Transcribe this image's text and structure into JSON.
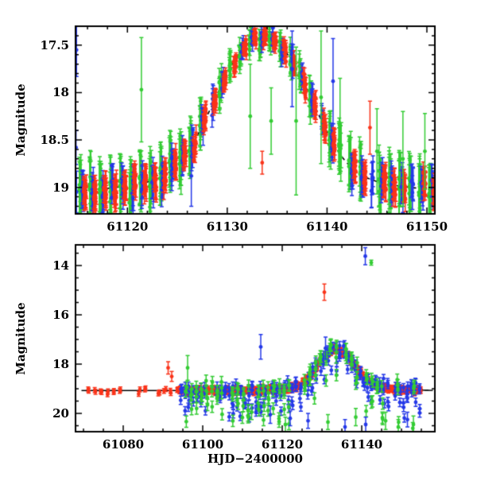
{
  "figure": {
    "ylabel": "Magnitude",
    "xlabel": "HJD−2400000",
    "background": "#ffffff",
    "frame_color": "#000000",
    "colors": {
      "red": "#fa3319",
      "green": "#33cc33",
      "blue": "#2438e8"
    }
  },
  "chart_data": [
    {
      "id": "top",
      "type": "scatter",
      "description": "Zoom on outburst peak: nightly clustered photometry from three sources (red/green/blue) with error bars and dashed model light curve peaking near HJD 61133.6 at mag 17.45 over a 19.07 baseline",
      "ylabel": "Magnitude",
      "xlabel": "",
      "xlim": [
        61114.8,
        61150.8
      ],
      "ylim": [
        17.3,
        19.28
      ],
      "y_axis_inverted_magnitude": true,
      "x_major_ticks": [
        61120,
        61130,
        61140,
        61150
      ],
      "x_minor_step": 2,
      "y_major_ticks": [
        17.5,
        18,
        18.5,
        19
      ],
      "y_minor_step": 0.1,
      "grid": false,
      "legend": false,
      "model": {
        "shape": "double-gaussian-flux-bump",
        "base_mag": 19.07,
        "t0": 61133.6,
        "a1": 3.37,
        "s1": 3.5,
        "a2": 0.25,
        "s2": 9.0,
        "style": "dashed",
        "color": "#000000",
        "range": [
          61114.8,
          61150.8
        ]
      },
      "series": [
        {
          "name": "observer-green",
          "color": "green",
          "seed": 101,
          "night_start": 61115.0,
          "night_end": 61150.6,
          "night_step": 1.0,
          "night_offset": 0.3,
          "n_per_night": 8,
          "t_spread": 0.12,
          "mag_scatter": 0.055,
          "night_wobble": 0.035,
          "err_base": 0.1,
          "err_slope": 0.13,
          "skip_prob": 0.1,
          "faint_prob": 0,
          "faint_max": 0
        },
        {
          "name": "observer-blue",
          "color": "blue",
          "seed": 202,
          "night_start": 61115.0,
          "night_end": 61150.6,
          "night_step": 1.0,
          "night_offset": 0.52,
          "n_per_night": 6,
          "t_spread": 0.1,
          "mag_scatter": 0.05,
          "night_wobble": 0.03,
          "err_base": 0.07,
          "err_slope": 0.07,
          "skip_prob": 0.12,
          "faint_prob": 0,
          "faint_max": 0
        },
        {
          "name": "observer-red",
          "color": "red",
          "seed": 303,
          "night_start": 61115.0,
          "night_end": 61150.6,
          "night_step": 1.0,
          "night_offset": 0.76,
          "n_per_night": 13,
          "t_spread": 0.14,
          "mag_scatter": 0.045,
          "night_wobble": 0.028,
          "err_base": 0.05,
          "err_slope": 0.05,
          "skip_prob": 0.06,
          "faint_prob": 0,
          "faint_max": 0
        }
      ],
      "extras": [
        {
          "series": "blue",
          "x": 61114.9,
          "mag": 17.55,
          "err": 0.28
        },
        {
          "series": "blue",
          "x": 61114.85,
          "mag": 18.58,
          "err": 0.18
        },
        {
          "series": "blue",
          "x": 61114.9,
          "mag": 19.05,
          "err": 0.22
        },
        {
          "series": "green",
          "x": 61121.4,
          "mag": 17.97,
          "err": 0.55
        },
        {
          "series": "blue",
          "x": 61126.4,
          "mag": 18.88,
          "err": 0.32
        },
        {
          "series": "green",
          "x": 61132.3,
          "mag": 18.25,
          "err": 0.55
        },
        {
          "series": "red",
          "x": 61133.5,
          "mag": 18.74,
          "err": 0.12
        },
        {
          "series": "green",
          "x": 61134.4,
          "mag": 18.3,
          "err": 0.35
        },
        {
          "series": "blue",
          "x": 61136.5,
          "mag": 17.75,
          "err": 0.4
        },
        {
          "series": "green",
          "x": 61136.9,
          "mag": 18.3,
          "err": 0.78
        },
        {
          "series": "green",
          "x": 61139.4,
          "mag": 18.05,
          "err": 0.7
        },
        {
          "series": "blue",
          "x": 61140.6,
          "mag": 17.88,
          "err": 0.45
        },
        {
          "series": "green",
          "x": 61141.3,
          "mag": 18.35,
          "err": 0.5
        },
        {
          "series": "red",
          "x": 61144.3,
          "mag": 18.37,
          "err": 0.28
        },
        {
          "series": "green",
          "x": 61145.0,
          "mag": 18.62,
          "err": 0.45
        },
        {
          "series": "green",
          "x": 61147.6,
          "mag": 18.7,
          "err": 0.5
        },
        {
          "series": "green",
          "x": 61149.8,
          "mag": 18.62,
          "err": 0.4
        }
      ]
    },
    {
      "id": "bottom",
      "type": "scatter",
      "description": "Full light curve: quiescence at mag ~19.1 from HJD 61071 (red-only early coverage), dense multi-site coverage after 61093, outburst bump to mag ~17.5 at 61133, bright outliers near mag 14-15, faint scatter to mag ~20.6; solid model line",
      "ylabel": "Magnitude",
      "xlabel": "HJD−2400000",
      "xlim": [
        61068.0,
        61158.4
      ],
      "ylim": [
        13.16,
        20.74
      ],
      "y_axis_inverted_magnitude": true,
      "x_major_ticks": [
        61080,
        61100,
        61120,
        61140
      ],
      "x_minor_step": 5,
      "y_major_ticks": [
        14,
        16,
        18,
        20
      ],
      "y_minor_step": 0.5,
      "grid": false,
      "legend": false,
      "model": {
        "shape": "double-gaussian-flux-bump",
        "base_mag": 19.07,
        "t0": 61133.6,
        "a1": 3.37,
        "s1": 3.5,
        "a2": 0.25,
        "s2": 9.0,
        "style": "solid",
        "color": "#000000",
        "range": [
          61069.5,
          61158.0
        ]
      },
      "series": [
        {
          "name": "red-early",
          "color": "red",
          "seed": 404,
          "night_start": 61071.0,
          "night_end": 61092.5,
          "night_step": 1.6,
          "night_offset": 0.3,
          "n_per_night": 2,
          "t_spread": 0.25,
          "mag_scatter": 0.06,
          "night_wobble": 0.03,
          "err_base": 0.1,
          "err_slope": 0,
          "skip_prob": 0.15,
          "faint_prob": 0,
          "faint_max": 0
        },
        {
          "name": "red-dense",
          "color": "red",
          "seed": 505,
          "night_start": 61093.0,
          "night_end": 61154.6,
          "night_step": 0.5,
          "night_offset": 0.2,
          "n_per_night": 4,
          "t_spread": 0.18,
          "mag_scatter": 0.06,
          "night_wobble": 0.02,
          "err_base": 0.09,
          "err_slope": 0,
          "skip_prob": 0.05,
          "faint_prob": 0,
          "faint_max": 0
        },
        {
          "name": "blue-dense",
          "color": "blue",
          "seed": 606,
          "night_start": 61094.0,
          "night_end": 61154.0,
          "night_step": 1.0,
          "night_offset": 0.55,
          "n_per_night": 4,
          "t_spread": 0.2,
          "mag_scatter": 0.13,
          "night_wobble": 0.04,
          "err_base": 0.17,
          "err_slope": 0,
          "skip_prob": 0.15,
          "faint_prob": 0.3,
          "faint_max": 0.9
        },
        {
          "name": "green-dense",
          "color": "green",
          "seed": 707,
          "night_start": 61095.0,
          "night_end": 61153.5,
          "night_step": 1.3,
          "night_offset": 0.8,
          "n_per_night": 4,
          "t_spread": 0.2,
          "mag_scatter": 0.15,
          "night_wobble": 0.05,
          "err_base": 0.23,
          "err_slope": 0,
          "skip_prob": 0.18,
          "faint_prob": 0.35,
          "faint_max": 1.3
        }
      ],
      "extras": [
        {
          "series": "red",
          "x": 61091.3,
          "mag": 18.15,
          "err": 0.25
        },
        {
          "series": "red",
          "x": 61092.2,
          "mag": 18.5,
          "err": 0.2
        },
        {
          "series": "green",
          "x": 61096.2,
          "mag": 18.15,
          "err": 0.5
        },
        {
          "series": "green",
          "x": 61112.3,
          "mag": 19.95,
          "err": 0.3
        },
        {
          "series": "blue",
          "x": 61114.6,
          "mag": 17.3,
          "err": 0.5
        },
        {
          "series": "blue",
          "x": 61117.0,
          "mag": 20.05,
          "err": 0.35
        },
        {
          "series": "green",
          "x": 61120.8,
          "mag": 20.45,
          "err": 0.3
        },
        {
          "series": "blue",
          "x": 61122.0,
          "mag": 20.2,
          "err": 0.3
        },
        {
          "series": "blue",
          "x": 61126.5,
          "mag": 20.3,
          "err": 0.3
        },
        {
          "series": "red",
          "x": 61130.6,
          "mag": 15.08,
          "err": 0.33
        },
        {
          "series": "blue",
          "x": 61130.9,
          "mag": 17.35,
          "err": 0.45
        },
        {
          "series": "green",
          "x": 61131.5,
          "mag": 20.35,
          "err": 0.3
        },
        {
          "series": "blue",
          "x": 61135.8,
          "mag": 20.55,
          "err": 0.3
        },
        {
          "series": "green",
          "x": 61138.5,
          "mag": 20.15,
          "err": 0.35
        },
        {
          "series": "blue",
          "x": 61140.9,
          "mag": 13.62,
          "err": 0.35
        },
        {
          "series": "blue",
          "x": 61141.0,
          "mag": 20.45,
          "err": 0.3
        },
        {
          "series": "green",
          "x": 61142.4,
          "mag": 13.88,
          "err": 0.1
        },
        {
          "series": "green",
          "x": 61146.0,
          "mag": 20.3,
          "err": 0.35
        },
        {
          "series": "green",
          "x": 61149.2,
          "mag": 20.55,
          "err": 0.3
        },
        {
          "series": "blue",
          "x": 61151.5,
          "mag": 20.25,
          "err": 0.3
        },
        {
          "series": "green",
          "x": 61153.0,
          "mag": 20.45,
          "err": 0.35
        }
      ]
    }
  ]
}
